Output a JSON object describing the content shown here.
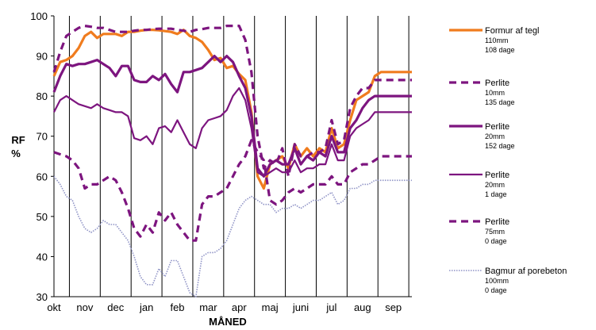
{
  "chart_data": {
    "type": "line",
    "title": "",
    "xlabel": "MÅNED",
    "ylabel": "RF %",
    "ylabel_lines": [
      "RF",
      "%"
    ],
    "ylim": [
      30,
      100
    ],
    "yticks": [
      30,
      40,
      50,
      60,
      70,
      80,
      90,
      100
    ],
    "xlim": [
      0,
      11.6
    ],
    "x_ticks": [
      "okt",
      "nov",
      "dec",
      "jan",
      "feb",
      "mar",
      "apr",
      "maj",
      "juni",
      "jul",
      "aug",
      "sep"
    ],
    "grid": "vertical",
    "legend_position": "right",
    "series": [
      {
        "name": "Formur af tegl",
        "details": [
          "110mm",
          "108 dage"
        ],
        "color": "#f07c1e",
        "style": "solid-thick",
        "x": [
          0.0,
          0.2,
          0.4,
          0.6,
          0.8,
          1.0,
          1.2,
          1.4,
          1.6,
          1.8,
          2.0,
          2.2,
          2.4,
          2.6,
          2.8,
          3.0,
          3.2,
          3.4,
          3.6,
          3.8,
          4.0,
          4.2,
          4.4,
          4.6,
          4.8,
          5.0,
          5.2,
          5.4,
          5.6,
          5.8,
          6.0,
          6.2,
          6.4,
          6.6,
          6.8,
          7.0,
          7.2,
          7.4,
          7.6,
          7.8,
          8.0,
          8.2,
          8.4,
          8.6,
          8.8,
          9.0,
          9.2,
          9.4,
          9.6,
          9.8,
          10.0,
          10.2,
          10.4,
          10.6,
          10.8,
          11.0,
          11.2,
          11.4,
          11.6
        ],
        "values": [
          85,
          88.5,
          89,
          90,
          92,
          95,
          96,
          94.5,
          95.5,
          95.5,
          95.5,
          95,
          96,
          96,
          96.3,
          96.5,
          96.5,
          96.4,
          96.2,
          96,
          95.5,
          96.5,
          95,
          94.5,
          93.5,
          91.5,
          89,
          89.5,
          87,
          87.5,
          85.5,
          84,
          76,
          60,
          57,
          63,
          64,
          65,
          62,
          68,
          65,
          67,
          65,
          67,
          66,
          72,
          67,
          68,
          74,
          79,
          80,
          81,
          85,
          86,
          86,
          86,
          86,
          86,
          86
        ]
      },
      {
        "name": "Perlite",
        "details": [
          "10mm",
          "135 dage"
        ],
        "color": "#7d157f",
        "style": "dashed",
        "x": [
          0.0,
          0.2,
          0.4,
          0.6,
          0.8,
          1.0,
          1.2,
          1.4,
          1.6,
          1.8,
          2.0,
          2.2,
          2.4,
          2.6,
          2.8,
          3.0,
          3.2,
          3.4,
          3.6,
          3.8,
          4.0,
          4.2,
          4.4,
          4.6,
          4.8,
          5.0,
          5.2,
          5.4,
          5.6,
          5.8,
          6.0,
          6.2,
          6.4,
          6.6,
          6.8,
          7.0,
          7.2,
          7.4,
          7.6,
          7.8,
          8.0,
          8.2,
          8.4,
          8.6,
          8.8,
          9.0,
          9.2,
          9.4,
          9.6,
          9.8,
          10.0,
          10.2,
          10.4,
          10.6,
          10.8,
          11.0,
          11.2,
          11.4,
          11.6
        ],
        "values": [
          86,
          91,
          95,
          96,
          97,
          97.5,
          97.3,
          97,
          97,
          96.5,
          96,
          96,
          96,
          96.3,
          96.5,
          96.5,
          96.7,
          96.8,
          96.8,
          96.8,
          96.5,
          96.3,
          96,
          96.5,
          96.7,
          97,
          97,
          97,
          97.5,
          97.5,
          97.5,
          94,
          86,
          70,
          62,
          64,
          63,
          67,
          60,
          68,
          65,
          65,
          66,
          66,
          67,
          74,
          68,
          69,
          77,
          80,
          82,
          82,
          84,
          84,
          84,
          84,
          84,
          84,
          84
        ]
      },
      {
        "name": "Perlite",
        "details": [
          "20mm",
          "152 dage"
        ],
        "color": "#7d157f",
        "style": "solid-thick",
        "x": [
          0.0,
          0.2,
          0.4,
          0.6,
          0.8,
          1.0,
          1.2,
          1.4,
          1.6,
          1.8,
          2.0,
          2.2,
          2.4,
          2.6,
          2.8,
          3.0,
          3.2,
          3.4,
          3.6,
          3.8,
          4.0,
          4.2,
          4.4,
          4.6,
          4.8,
          5.0,
          5.2,
          5.4,
          5.6,
          5.8,
          6.0,
          6.2,
          6.4,
          6.6,
          6.8,
          7.0,
          7.2,
          7.4,
          7.6,
          7.8,
          8.0,
          8.2,
          8.4,
          8.6,
          8.8,
          9.0,
          9.2,
          9.4,
          9.6,
          9.8,
          10.0,
          10.2,
          10.4,
          10.6,
          10.8,
          11.0,
          11.2,
          11.4,
          11.6
        ],
        "values": [
          81,
          85,
          88,
          87.5,
          88,
          88,
          88.5,
          89,
          88,
          87,
          85,
          87.5,
          87.5,
          84,
          83.5,
          83.5,
          85,
          84,
          85.5,
          83,
          81,
          86,
          86,
          86.5,
          87,
          88.5,
          90,
          88.5,
          90,
          88.5,
          85,
          82,
          75,
          62,
          60,
          63,
          64,
          63,
          63,
          67,
          63,
          65,
          64,
          66,
          65,
          70,
          66,
          66,
          72,
          74,
          77,
          79,
          80,
          80,
          80,
          80,
          80,
          80,
          80
        ]
      },
      {
        "name": "Perlite",
        "details": [
          "20mm",
          "1 dage"
        ],
        "color": "#7d157f",
        "style": "solid",
        "x": [
          0.0,
          0.2,
          0.4,
          0.6,
          0.8,
          1.0,
          1.2,
          1.4,
          1.6,
          1.8,
          2.0,
          2.2,
          2.4,
          2.6,
          2.8,
          3.0,
          3.2,
          3.4,
          3.6,
          3.8,
          4.0,
          4.2,
          4.4,
          4.6,
          4.8,
          5.0,
          5.2,
          5.4,
          5.6,
          5.8,
          6.0,
          6.2,
          6.4,
          6.6,
          6.8,
          7.0,
          7.2,
          7.4,
          7.6,
          7.8,
          8.0,
          8.2,
          8.4,
          8.6,
          8.8,
          9.0,
          9.2,
          9.4,
          9.6,
          9.8,
          10.0,
          10.2,
          10.4,
          10.6,
          10.8,
          11.0,
          11.2,
          11.4,
          11.6
        ],
        "values": [
          76,
          79,
          80,
          79,
          78,
          77.5,
          77,
          78,
          77,
          76.5,
          76,
          76,
          75,
          69.5,
          69,
          70,
          68,
          72,
          72.5,
          71,
          74,
          71,
          68,
          67,
          72,
          74,
          74.5,
          75,
          76.5,
          80,
          82,
          79,
          72,
          61,
          60,
          61,
          62,
          61,
          61,
          64,
          61,
          62,
          62,
          63,
          63,
          68,
          64,
          64,
          70,
          72,
          73,
          74,
          76,
          76,
          76,
          76,
          76,
          76,
          76
        ]
      },
      {
        "name": "Perlite",
        "details": [
          "75mm",
          "0 dage"
        ],
        "color": "#7d157f",
        "style": "dashed",
        "x": [
          0.0,
          0.2,
          0.4,
          0.6,
          0.8,
          1.0,
          1.2,
          1.4,
          1.6,
          1.8,
          2.0,
          2.2,
          2.4,
          2.6,
          2.8,
          3.0,
          3.2,
          3.4,
          3.6,
          3.8,
          4.0,
          4.2,
          4.4,
          4.6,
          4.8,
          5.0,
          5.2,
          5.4,
          5.6,
          5.8,
          6.0,
          6.2,
          6.4,
          6.6,
          6.8,
          7.0,
          7.2,
          7.4,
          7.6,
          7.8,
          8.0,
          8.2,
          8.4,
          8.6,
          8.8,
          9.0,
          9.2,
          9.4,
          9.6,
          9.8,
          10.0,
          10.2,
          10.4,
          10.6,
          10.8,
          11.0,
          11.2,
          11.4,
          11.6
        ],
        "values": [
          66,
          65.5,
          65,
          64,
          62,
          57,
          58,
          58,
          59,
          60,
          59,
          56,
          52,
          47,
          45,
          48,
          46,
          51,
          49,
          51,
          48,
          46,
          44,
          44,
          53,
          55,
          55,
          56,
          57,
          60,
          63,
          65,
          69,
          66,
          64,
          54,
          53,
          54,
          56,
          57,
          56,
          57,
          58,
          58,
          58,
          60,
          58,
          58,
          61,
          62,
          63,
          63,
          64,
          65,
          65,
          65,
          65,
          65,
          65
        ]
      },
      {
        "name": "Bagmur af porebeton",
        "details": [
          "100mm",
          "0 dage"
        ],
        "color": "#8f93c6",
        "style": "dotted",
        "x": [
          0.0,
          0.2,
          0.4,
          0.6,
          0.8,
          1.0,
          1.2,
          1.4,
          1.6,
          1.8,
          2.0,
          2.2,
          2.4,
          2.6,
          2.8,
          3.0,
          3.2,
          3.4,
          3.6,
          3.8,
          4.0,
          4.2,
          4.4,
          4.6,
          4.8,
          5.0,
          5.2,
          5.4,
          5.6,
          5.8,
          6.0,
          6.2,
          6.4,
          6.6,
          6.8,
          7.0,
          7.2,
          7.4,
          7.6,
          7.8,
          8.0,
          8.2,
          8.4,
          8.6,
          8.8,
          9.0,
          9.2,
          9.4,
          9.6,
          9.8,
          10.0,
          10.2,
          10.4,
          10.6,
          10.8,
          11.0,
          11.2,
          11.4,
          11.6
        ],
        "values": [
          60,
          58,
          55,
          54,
          50,
          47,
          46,
          47,
          49,
          48,
          48,
          46,
          44,
          40,
          35,
          33,
          33,
          37,
          35,
          39,
          39,
          35,
          31,
          30,
          40,
          41,
          41,
          42,
          44,
          48,
          52,
          54,
          55,
          54,
          53,
          53,
          51,
          52,
          52,
          53,
          52,
          53,
          54,
          54,
          55,
          56,
          53,
          54,
          57,
          57,
          58,
          58,
          59,
          59,
          59,
          59,
          59,
          59,
          59
        ]
      }
    ]
  }
}
